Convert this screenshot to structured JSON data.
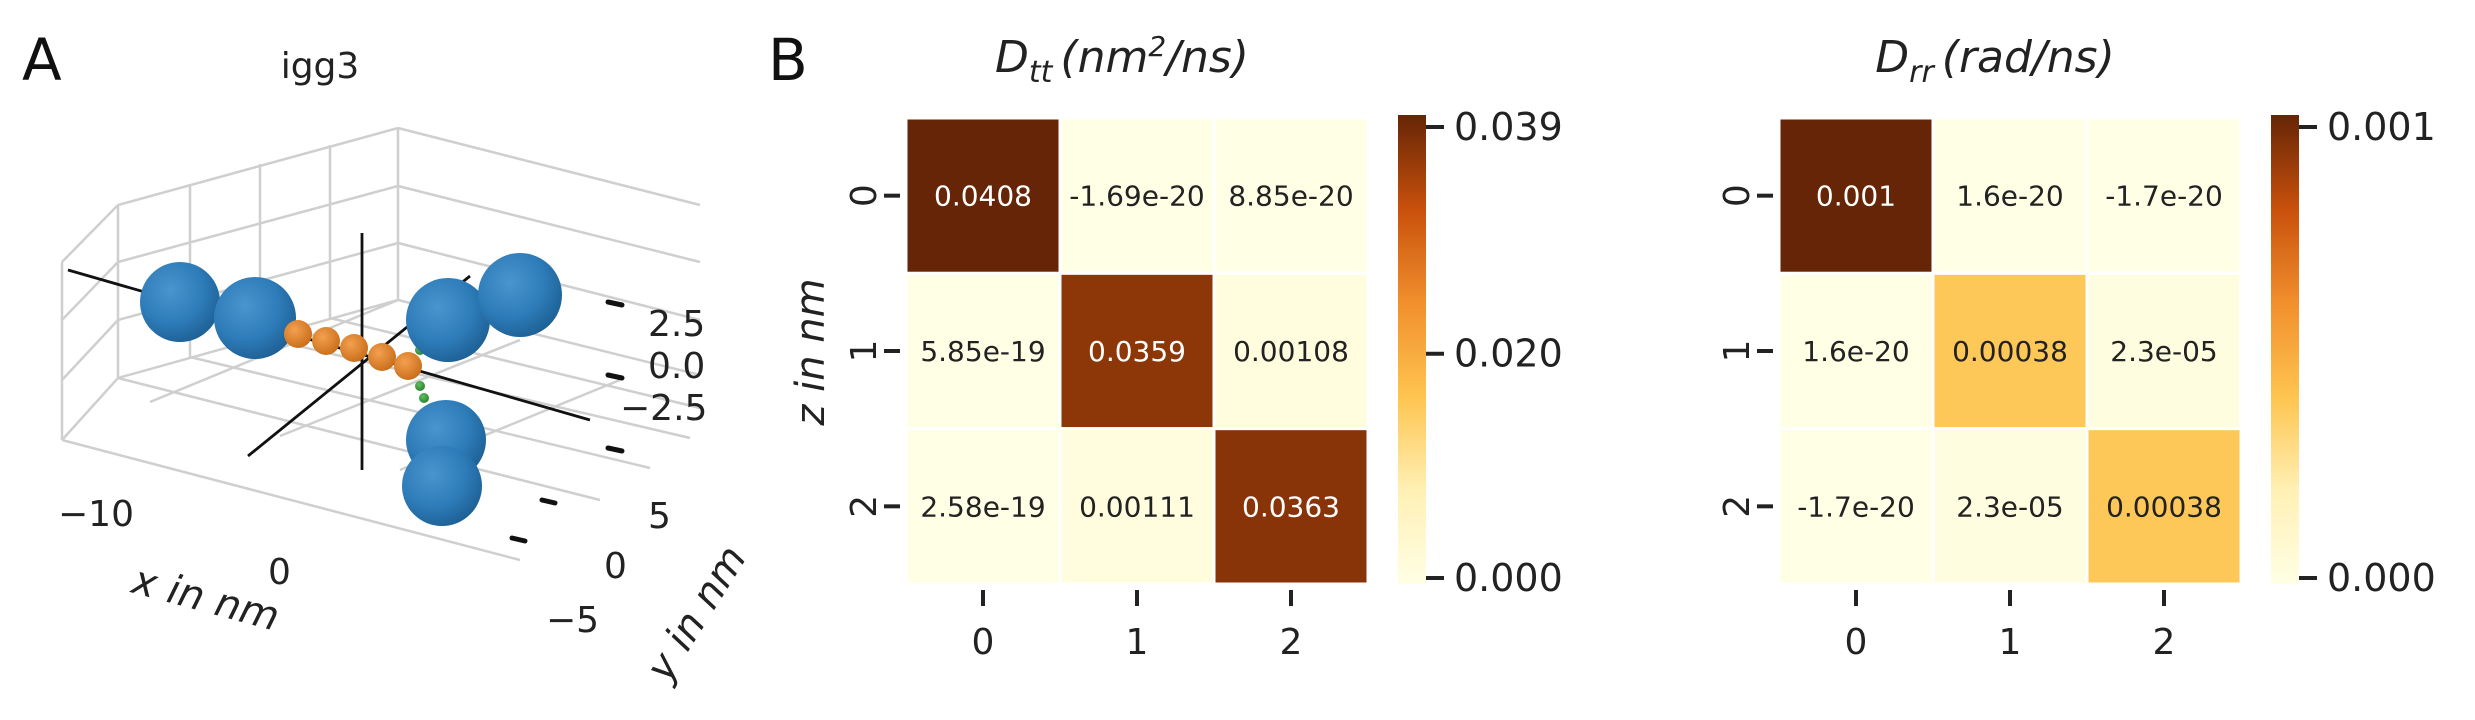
{
  "panels": {
    "a_letter": "A",
    "b_letter": "B"
  },
  "chart_data": [
    {
      "type": "scatter",
      "title": "igg3",
      "xlabel": "x in nm",
      "ylabel": "y in nm",
      "x_ticks": [
        "−10",
        "0"
      ],
      "y_ticks": [
        "−5",
        "0",
        "5"
      ],
      "z_ticks": [
        "2.5",
        "0.0",
        "−2.5"
      ],
      "colors": {
        "large_beads": "#2d7bb8",
        "small_beads": "#e8862c",
        "hinge_beads": "#3a9a3a",
        "axes": "#111111"
      }
    },
    {
      "type": "heatmap",
      "title_symbol": "D",
      "title_subscript": "tt",
      "title_unit": "(nm",
      "title_unit_sup": "2",
      "title_unit_end": "/ns)",
      "ylabel": "z in nm",
      "row_labels": [
        "0",
        "1",
        "2"
      ],
      "col_labels": [
        "0",
        "1",
        "2"
      ],
      "values": [
        [
          0.0408,
          -1.69e-20,
          8.85e-20
        ],
        [
          5.85e-19,
          0.0359,
          0.00108
        ],
        [
          2.58e-19,
          0.00111,
          0.0363
        ]
      ],
      "cell_labels": [
        [
          "0.0408",
          "-1.69e-20",
          "8.85e-20"
        ],
        [
          "5.85e-19",
          "0.0359",
          "0.00108"
        ],
        [
          "2.58e-19",
          "0.00111",
          "0.0363"
        ]
      ],
      "vmin": 0.0,
      "vmax": 0.039,
      "colorbar_ticks": [
        {
          "value": 0.039,
          "label": "0.039"
        },
        {
          "value": 0.02,
          "label": "0.020"
        },
        {
          "value": 0.0,
          "label": "0.000"
        }
      ],
      "colormap": "YlOrBr"
    },
    {
      "type": "heatmap",
      "title_symbol": "D",
      "title_subscript": "rr",
      "title_unit": "(rad/ns)",
      "row_labels": [
        "0",
        "1",
        "2"
      ],
      "col_labels": [
        "0",
        "1",
        "2"
      ],
      "values": [
        [
          0.001,
          1.6e-20,
          -1.7e-20
        ],
        [
          1.6e-20,
          0.00038,
          2.3e-05
        ],
        [
          -1.7e-20,
          2.3e-05,
          0.00038
        ]
      ],
      "cell_labels": [
        [
          "0.001",
          "1.6e-20",
          "-1.7e-20"
        ],
        [
          "1.6e-20",
          "0.00038",
          "2.3e-05"
        ],
        [
          "-1.7e-20",
          "2.3e-05",
          "0.00038"
        ]
      ],
      "vmin": 0.0,
      "vmax": 0.001,
      "colorbar_ticks": [
        {
          "value": 0.001,
          "label": "0.001"
        },
        {
          "value": 0.0,
          "label": "0.000"
        }
      ],
      "colormap": "YlOrBr"
    }
  ]
}
